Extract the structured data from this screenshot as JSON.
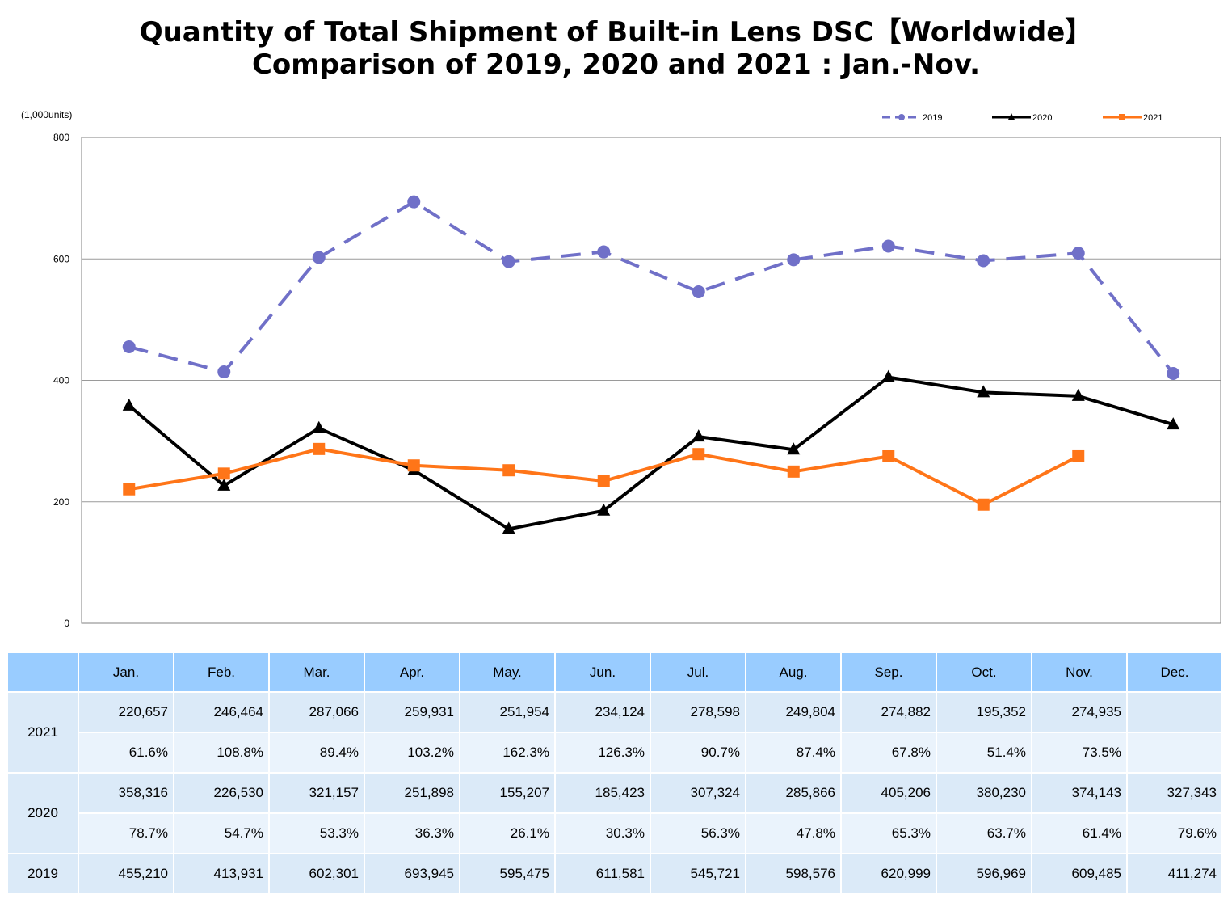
{
  "header": {
    "title_line1": "Quantity of Total Shipment of Built-in Lens DSC【Worldwide】",
    "title_line2": "Comparison of 2019, 2020 and 2021 : Jan.-Nov."
  },
  "chart_data": {
    "type": "line",
    "unit_label": "(1,000units)",
    "categories": [
      "Jan.",
      "Feb.",
      "Mar.",
      "Apr.",
      "May.",
      "Jun.",
      "Jul.",
      "Aug.",
      "Sep.",
      "Oct.",
      "Nov.",
      "Dec."
    ],
    "ylim": [
      0,
      800
    ],
    "yticks": [
      0,
      200,
      400,
      600,
      800
    ],
    "grid": true,
    "legend_position": "top-right",
    "series": [
      {
        "name": "2019",
        "color": "#7070c8",
        "style": "dashed",
        "marker": "circle",
        "values": [
          455.21,
          413.931,
          602.301,
          693.945,
          595.475,
          611.581,
          545.721,
          598.576,
          620.999,
          596.969,
          609.485,
          411.274
        ]
      },
      {
        "name": "2020",
        "color": "#000000",
        "style": "solid",
        "marker": "triangle",
        "values": [
          358.316,
          226.53,
          321.157,
          251.898,
          155.207,
          185.423,
          307.324,
          285.866,
          405.206,
          380.23,
          374.143,
          327.343
        ]
      },
      {
        "name": "2021",
        "color": "#ff7518",
        "style": "solid",
        "marker": "square",
        "values": [
          220.657,
          246.464,
          287.066,
          259.931,
          251.954,
          234.124,
          278.598,
          249.804,
          274.882,
          195.352,
          274.935,
          null
        ]
      }
    ]
  },
  "table": {
    "columns": [
      "Jan.",
      "Feb.",
      "Mar.",
      "Apr.",
      "May.",
      "Jun.",
      "Jul.",
      "Aug.",
      "Sep.",
      "Oct.",
      "Nov.",
      "Dec."
    ],
    "rows": [
      {
        "year": "2021",
        "values": [
          "220,657",
          "246,464",
          "287,066",
          "259,931",
          "251,954",
          "234,124",
          "278,598",
          "249,804",
          "274,882",
          "195,352",
          "274,935",
          ""
        ],
        "percents": [
          "61.6%",
          "108.8%",
          "89.4%",
          "103.2%",
          "162.3%",
          "126.3%",
          "90.7%",
          "87.4%",
          "67.8%",
          "51.4%",
          "73.5%",
          ""
        ]
      },
      {
        "year": "2020",
        "values": [
          "358,316",
          "226,530",
          "321,157",
          "251,898",
          "155,207",
          "185,423",
          "307,324",
          "285,866",
          "405,206",
          "380,230",
          "374,143",
          "327,343"
        ],
        "percents": [
          "78.7%",
          "54.7%",
          "53.3%",
          "36.3%",
          "26.1%",
          "30.3%",
          "56.3%",
          "47.8%",
          "65.3%",
          "63.7%",
          "61.4%",
          "79.6%"
        ]
      },
      {
        "year": "2019",
        "values": [
          "455,210",
          "413,931",
          "602,301",
          "693,945",
          "595,475",
          "611,581",
          "545,721",
          "598,576",
          "620,999",
          "596,969",
          "609,485",
          "411,274"
        ]
      }
    ]
  }
}
